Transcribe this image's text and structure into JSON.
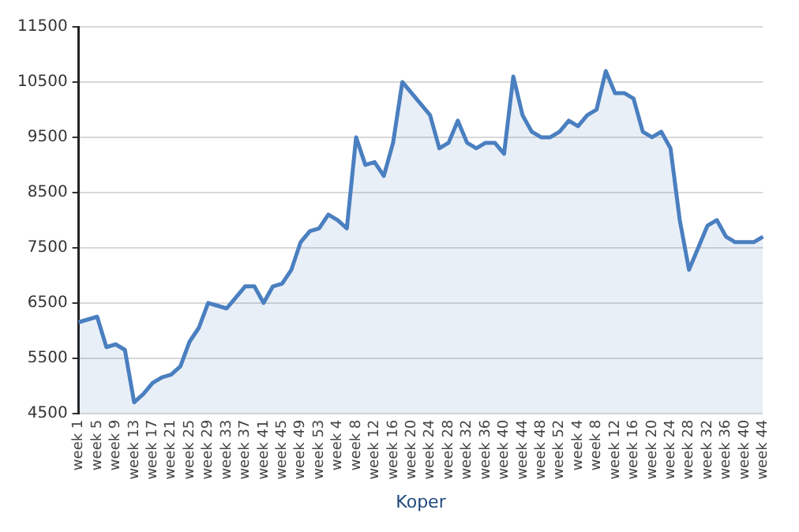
{
  "chart_data": {
    "type": "area",
    "xlabel": "Koper",
    "categories": [
      "week 1",
      null,
      "week 5",
      null,
      "week 9",
      null,
      "week 13",
      null,
      "week 17",
      null,
      "week 21",
      null,
      "week 25",
      null,
      "week 29",
      null,
      "week 33",
      null,
      "week 37",
      null,
      "week 41",
      null,
      "week 45",
      null,
      "week 49",
      null,
      "week 53",
      null,
      "week 4",
      null,
      "week 8",
      null,
      "week 12",
      null,
      "week 16",
      null,
      "week 20",
      null,
      "week 24",
      null,
      "week 28",
      null,
      "week 32",
      null,
      "week 36",
      null,
      "week 40",
      null,
      "week 44",
      null,
      "week 48",
      null,
      "week 52",
      null,
      "week 4",
      null,
      "week 8",
      null,
      "week 12",
      null,
      "week 16",
      null,
      "week 20",
      null,
      "week 24",
      null,
      "week 28",
      null,
      "week 32",
      null,
      "week 36",
      null,
      "week 40",
      null,
      "week 44"
    ],
    "series": [
      {
        "color": "#4a7fc0",
        "values": [
          6150,
          6200,
          6250,
          5700,
          5750,
          5650,
          4700,
          4850,
          5050,
          5150,
          5200,
          5350,
          5800,
          6050,
          6500,
          6450,
          6400,
          6600,
          6800,
          6800,
          6500,
          6800,
          6850,
          7100,
          7600,
          7800,
          7850,
          8100,
          8000,
          7850,
          9500,
          9000,
          9050,
          8800,
          9400,
          10500,
          10300,
          10100,
          9900,
          9300,
          9400,
          9800,
          9400,
          9300,
          9400,
          9400,
          9200,
          10600,
          9900,
          9600,
          9500,
          9500,
          9600,
          9800,
          9700,
          9900,
          10000,
          10700,
          10300,
          10300,
          10200,
          9600,
          9500,
          9600,
          9300,
          8000,
          7100,
          7500,
          7900,
          8000,
          7700,
          7600,
          7600,
          7600,
          7700
        ]
      }
    ],
    "ylim": [
      4500,
      11500
    ],
    "yticks": [
      4500,
      5500,
      6500,
      7500,
      8500,
      9500,
      10500,
      11500
    ],
    "grid": "y",
    "legend": false,
    "marker": "none",
    "line_style": "solid"
  }
}
